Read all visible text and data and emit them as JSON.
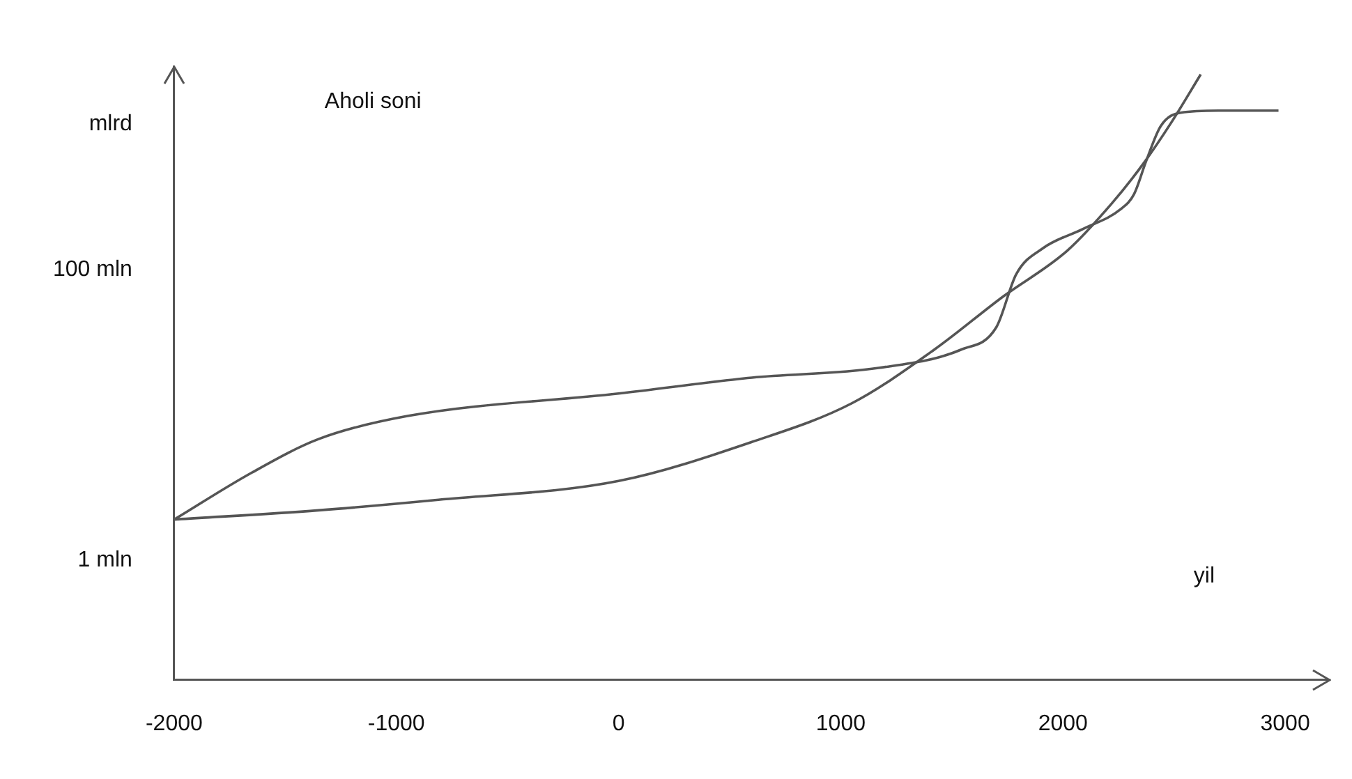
{
  "chart_data": {
    "type": "line",
    "ylabel": "Aholi soni",
    "xlabel": "yil",
    "log": "y",
    "xlim": [
      -2000,
      3200
    ],
    "xticks": [
      -2000,
      -1000,
      0,
      1000,
      2000,
      3000
    ],
    "ylim": [
      0.15,
      2500
    ],
    "yticks": [
      {
        "value": 1,
        "label": "1 mln"
      },
      {
        "value": 100,
        "label": "100 mln"
      },
      {
        "value": 1000,
        "label": "mlrd"
      }
    ],
    "grid": false,
    "legend": false,
    "marker": "none",
    "line_style": "solid",
    "series": [
      {
        "color": "#555555",
        "x": [
          -2000,
          -1650,
          -1350,
          -950,
          0,
          600,
          1170,
          1540,
          1700,
          1790,
          1910,
          2090,
          2260,
          2320,
          2375,
          2440,
          2530,
          2700,
          2970
        ],
        "values": [
          1.9,
          4.0,
          6.8,
          9.8,
          14,
          18,
          21,
          28,
          40,
          93,
          140,
          190,
          260,
          330,
          560,
          970,
          1200,
          1240,
          1240
        ]
      },
      {
        "color": "#555555",
        "x": [
          -2000,
          -1350,
          -810,
          0,
          600,
          1050,
          1420,
          1730,
          2020,
          2220,
          2360,
          2490,
          2620
        ],
        "values": [
          1.9,
          2.2,
          2.6,
          3.5,
          6.5,
          12,
          28,
          65,
          135,
          285,
          530,
          1040,
          2200
        ]
      }
    ]
  }
}
